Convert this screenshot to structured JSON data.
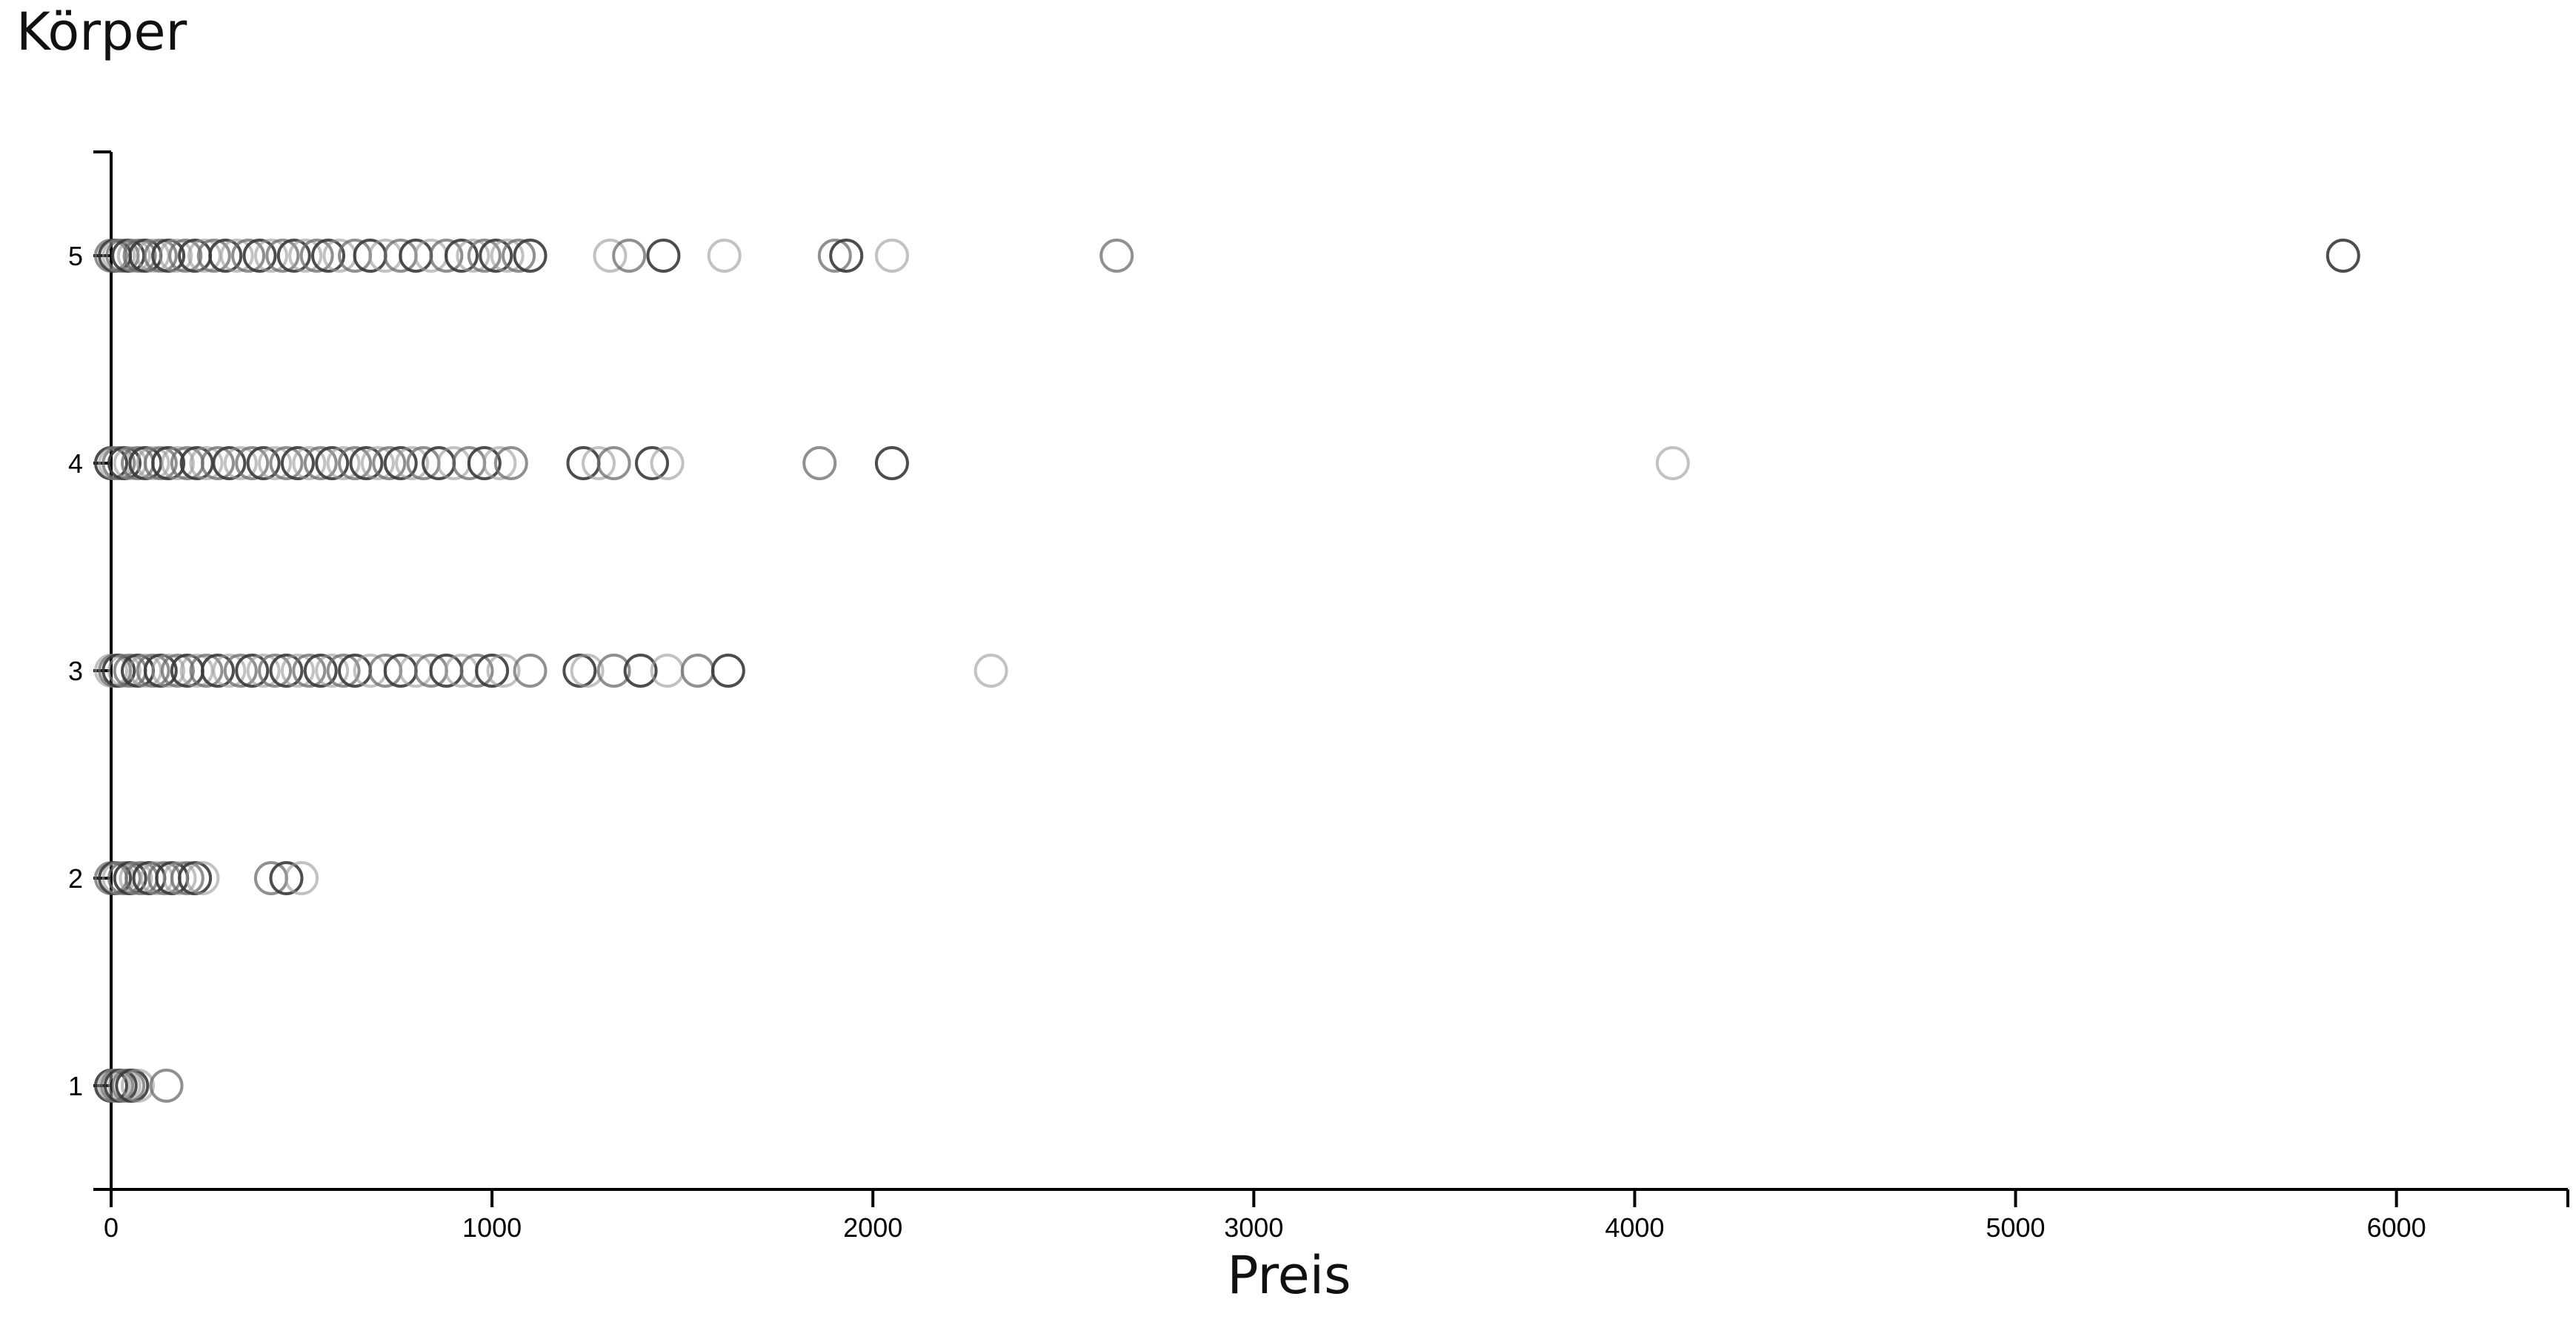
{
  "chart_data": {
    "type": "scatter",
    "xlabel": "Preis",
    "ylabel": "Körper",
    "xlim": [
      0,
      6450
    ],
    "ylim": [
      0.5,
      5.5
    ],
    "xticks": [
      0,
      1000,
      2000,
      3000,
      4000,
      5000,
      6000
    ],
    "yticks": [
      1,
      2,
      3,
      4,
      5
    ],
    "grid": false,
    "marker": "open-circle",
    "series": [
      {
        "y": 5,
        "x": [
          0,
          10,
          20,
          30,
          45,
          60,
          75,
          90,
          110,
          130,
          150,
          170,
          195,
          220,
          245,
          270,
          300,
          330,
          360,
          390,
          420,
          450,
          480,
          510,
          540,
          570,
          600,
          640,
          680,
          720,
          760,
          800,
          840,
          880,
          920,
          950,
          980,
          1010,
          1040,
          1070,
          1100,
          1310,
          1360,
          1450,
          1610,
          1900,
          1930,
          2050,
          2640,
          5860
        ]
      },
      {
        "y": 4,
        "x": [
          0,
          10,
          20,
          35,
          50,
          70,
          90,
          110,
          130,
          150,
          175,
          200,
          225,
          250,
          280,
          310,
          340,
          370,
          400,
          430,
          460,
          490,
          520,
          550,
          580,
          610,
          640,
          670,
          700,
          730,
          760,
          790,
          820,
          860,
          900,
          940,
          980,
          1020,
          1050,
          1240,
          1280,
          1320,
          1420,
          1460,
          1860,
          2050,
          4100
        ]
      },
      {
        "y": 3,
        "x": [
          0,
          10,
          20,
          35,
          50,
          70,
          90,
          110,
          130,
          150,
          175,
          200,
          225,
          250,
          280,
          310,
          340,
          370,
          400,
          430,
          460,
          490,
          520,
          550,
          580,
          610,
          640,
          680,
          720,
          760,
          800,
          840,
          880,
          920,
          960,
          1000,
          1030,
          1100,
          1230,
          1250,
          1320,
          1390,
          1460,
          1540,
          1620,
          2310
        ]
      },
      {
        "y": 2,
        "x": [
          0,
          10,
          20,
          35,
          50,
          65,
          80,
          100,
          120,
          140,
          160,
          180,
          200,
          220,
          240,
          420,
          460,
          500
        ]
      },
      {
        "y": 1,
        "x": [
          0,
          8,
          16,
          25,
          35,
          45,
          55,
          70,
          145
        ]
      }
    ]
  }
}
